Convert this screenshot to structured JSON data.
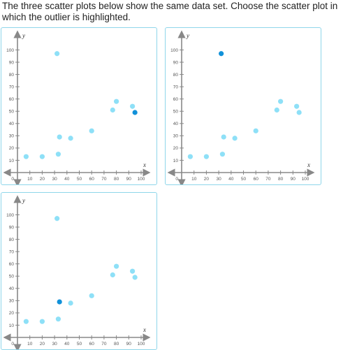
{
  "question": {
    "text": "The three scatter plots below show the same data set. Choose the scatter plot in which the outlier is highlighted."
  },
  "colors": {
    "point": "#8ee0f7",
    "highlight": "#1191d9",
    "axis": "#888888",
    "border": "#8fd6ea"
  },
  "chart_data": [
    {
      "type": "scatter",
      "xlabel": "x",
      "ylabel": "y",
      "xlim": [
        0,
        100
      ],
      "ylim": [
        0,
        100
      ],
      "xticks": [
        10,
        20,
        30,
        40,
        50,
        60,
        70,
        80,
        90,
        100
      ],
      "yticks": [
        10,
        20,
        30,
        40,
        50,
        60,
        70,
        80,
        90,
        100
      ],
      "origin_label": "0",
      "grid": false,
      "points": [
        {
          "x": 7,
          "y": 13
        },
        {
          "x": 20,
          "y": 13
        },
        {
          "x": 33,
          "y": 15
        },
        {
          "x": 34,
          "y": 29
        },
        {
          "x": 43,
          "y": 28
        },
        {
          "x": 60,
          "y": 34
        },
        {
          "x": 77,
          "y": 51
        },
        {
          "x": 80,
          "y": 58
        },
        {
          "x": 93,
          "y": 54
        },
        {
          "x": 32,
          "y": 97
        },
        {
          "x": 95,
          "y": 49
        }
      ],
      "highlighted_index": 10
    },
    {
      "type": "scatter",
      "xlabel": "x",
      "ylabel": "y",
      "xlim": [
        0,
        100
      ],
      "ylim": [
        0,
        100
      ],
      "xticks": [
        10,
        20,
        30,
        40,
        50,
        60,
        70,
        80,
        90,
        100
      ],
      "yticks": [
        10,
        20,
        30,
        40,
        50,
        60,
        70,
        80,
        90,
        100
      ],
      "origin_label": "0",
      "grid": false,
      "points": [
        {
          "x": 7,
          "y": 13
        },
        {
          "x": 20,
          "y": 13
        },
        {
          "x": 33,
          "y": 15
        },
        {
          "x": 34,
          "y": 29
        },
        {
          "x": 43,
          "y": 28
        },
        {
          "x": 60,
          "y": 34
        },
        {
          "x": 77,
          "y": 51
        },
        {
          "x": 80,
          "y": 58
        },
        {
          "x": 93,
          "y": 54
        },
        {
          "x": 32,
          "y": 97
        },
        {
          "x": 95,
          "y": 49
        }
      ],
      "highlighted_index": 9
    },
    {
      "type": "scatter",
      "xlabel": "x",
      "ylabel": "y",
      "xlim": [
        0,
        100
      ],
      "ylim": [
        0,
        100
      ],
      "xticks": [
        10,
        20,
        30,
        40,
        50,
        60,
        70,
        80,
        90,
        100
      ],
      "yticks": [
        10,
        20,
        30,
        40,
        50,
        60,
        70,
        80,
        90,
        100
      ],
      "origin_label": "0",
      "grid": false,
      "points": [
        {
          "x": 7,
          "y": 13
        },
        {
          "x": 20,
          "y": 13
        },
        {
          "x": 33,
          "y": 15
        },
        {
          "x": 34,
          "y": 29
        },
        {
          "x": 43,
          "y": 28
        },
        {
          "x": 60,
          "y": 34
        },
        {
          "x": 77,
          "y": 51
        },
        {
          "x": 80,
          "y": 58
        },
        {
          "x": 93,
          "y": 54
        },
        {
          "x": 32,
          "y": 97
        },
        {
          "x": 95,
          "y": 49
        }
      ],
      "highlighted_index": 3
    }
  ]
}
